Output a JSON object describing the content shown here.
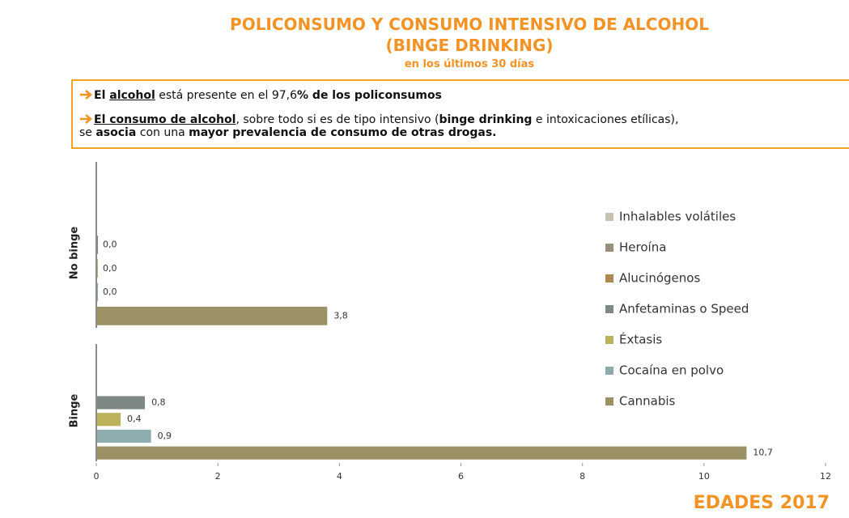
{
  "header": {
    "title_line1": "POLICONSUMO Y CONSUMO INTENSIVO DE ALCOHOL",
    "title_line2": "(BINGE DRINKING)",
    "subtitle": "en los últimos 30 días"
  },
  "callout": {
    "point1": [
      "El ",
      "alcohol",
      " está presente en el 97,6",
      "% de los policonsumos"
    ],
    "point2": [
      "El consumo de alcohol",
      ", sobre todo si es de tipo intensivo (",
      "binge drinking",
      " e intoxicaciones etílicas),",
      "se ",
      "asocia",
      " con una ",
      "mayor prevalencia de consumo de otras drogas."
    ]
  },
  "chart_data": {
    "type": "bar",
    "orientation": "horizontal",
    "categories": [
      "No binge",
      "Binge"
    ],
    "series": [
      {
        "name": "Inhalables volátiles",
        "color": "#c6c3b2",
        "values": [
          null,
          null
        ]
      },
      {
        "name": "Heroína",
        "color": "#9a8d7c",
        "values": [
          null,
          null
        ]
      },
      {
        "name": "Alucinógenos",
        "color": "#ad8a4e",
        "values": [
          null,
          null
        ]
      },
      {
        "name": "Anfetaminas o Speed",
        "color": "#7d8883",
        "values": [
          0,
          0.8
        ],
        "value_labels": [
          "0,0",
          "0,8"
        ]
      },
      {
        "name": "Éxtasis",
        "color": "#bcb25b",
        "values": [
          0,
          0.4
        ],
        "value_labels": [
          "0,0",
          "0,4"
        ]
      },
      {
        "name": "Cocaína en polvo",
        "color": "#8eabad",
        "values": [
          0,
          0.9
        ],
        "value_labels": [
          "0,0",
          "0,9"
        ]
      },
      {
        "name": "Cannabis",
        "color": "#9a9165",
        "values": [
          3.8,
          10.7
        ],
        "value_labels": [
          "3,8",
          "10,7"
        ]
      }
    ],
    "xlim": [
      0,
      12
    ],
    "xticks": [
      0,
      2,
      4,
      6,
      8,
      10,
      12
    ],
    "legend": "right"
  },
  "footer": "EDADES 2017"
}
